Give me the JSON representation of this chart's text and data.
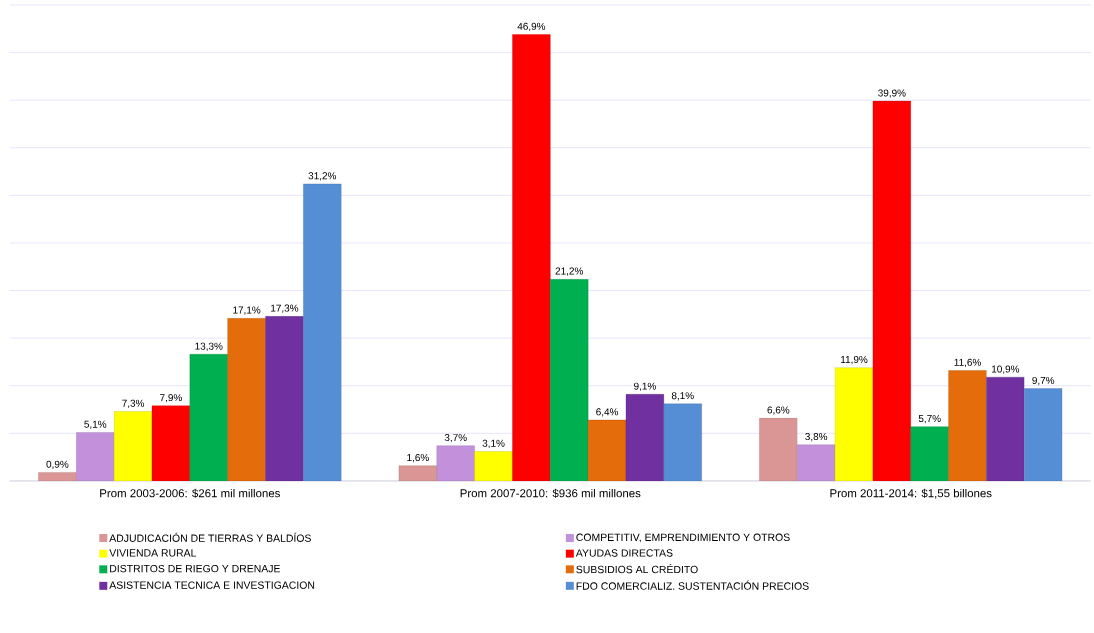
{
  "chart_data": {
    "type": "bar",
    "categories": [
      "Prom 2003-2006: $261 mil millones",
      "Prom 2007-2010: $936 mil millones",
      "Prom 2011-2014: $1,55 billones"
    ],
    "series": [
      {
        "name": "ADJUDICACIÓN DE TIERRAS Y BALDÍOS",
        "color": "#d99694",
        "values": [
          0.9,
          1.6,
          6.6
        ],
        "value_labels": [
          "0,9%",
          "1,6%",
          "6,6%"
        ]
      },
      {
        "name": "COMPETITIV, EMPRENDIMIENTO Y OTROS",
        "color": "#c391dc",
        "values": [
          5.1,
          3.7,
          3.8
        ],
        "value_labels": [
          "5,1%",
          "3,7%",
          "3,8%"
        ]
      },
      {
        "name": "VIVIENDA RURAL",
        "color": "#ffff00",
        "values": [
          7.3,
          3.1,
          11.9
        ],
        "value_labels": [
          "7,3%",
          "3,1%",
          "11,9%"
        ]
      },
      {
        "name": "AYUDAS DIRECTAS",
        "color": "#ff0000",
        "values": [
          7.9,
          46.9,
          39.9
        ],
        "value_labels": [
          "7,9%",
          "46,9%",
          "39,9%"
        ]
      },
      {
        "name": "DISTRITOS DE RIEGO Y DRENAJE",
        "color": "#00b050",
        "values": [
          13.3,
          21.2,
          5.7
        ],
        "value_labels": [
          "13,3%",
          "21,2%",
          "5,7%"
        ]
      },
      {
        "name": "SUBSIDIOS AL CRÉDITO",
        "color": "#e46c0a",
        "values": [
          17.1,
          6.4,
          11.6
        ],
        "value_labels": [
          "17,1%",
          "6,4%",
          "11,6%"
        ]
      },
      {
        "name": "ASISTENCIA TECNICA E INVESTIGACION",
        "color": "#7030a0",
        "values": [
          17.3,
          9.1,
          10.9
        ],
        "value_labels": [
          "17,3%",
          "9,1%",
          "10,9%"
        ]
      },
      {
        "name": "FDO COMERCIALIZ. SUSTENTACIÓN PRECIOS",
        "color": "#558ed5",
        "values": [
          31.2,
          8.1,
          9.7
        ],
        "value_labels": [
          "31,2%",
          "8,1%",
          "9,7%"
        ]
      }
    ],
    "ylim": [
      0,
      50
    ],
    "yticks": [
      {
        "value": 0,
        "label": null
      },
      {
        "value": 5,
        "label": null
      },
      {
        "value": 10,
        "label": null
      },
      {
        "value": 15,
        "label": null
      },
      {
        "value": 20,
        "label": null
      },
      {
        "value": 25,
        "label": null
      },
      {
        "value": 30,
        "label": null
      },
      {
        "value": 35,
        "label": null
      },
      {
        "value": 40,
        "label": null
      },
      {
        "value": 45,
        "label": null
      },
      {
        "value": 50,
        "label": null
      }
    ],
    "tick_labels": "x",
    "grid": "y",
    "legend": "bottom"
  }
}
